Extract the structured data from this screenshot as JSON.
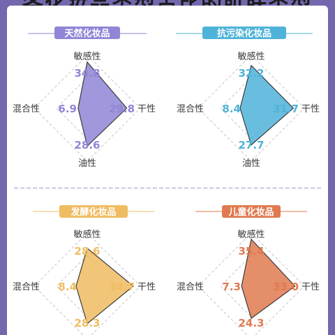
{
  "header": {
    "title": "各化妆品类型占比的肌肤类型"
  },
  "chart_data": [
    {
      "type": "radar",
      "title": "天然化妆品",
      "color": "#8f86d6",
      "axes": [
        "敏感性",
        "干性",
        "油性",
        "混合性"
      ],
      "values": [
        34.8,
        29.8,
        28.6,
        6.9
      ],
      "value_labels": [
        "34.8",
        "29.8",
        "28.6",
        "6.9"
      ],
      "rmax": 40
    },
    {
      "type": "radar",
      "title": "抗污染化妆品",
      "color": "#4fb3d9",
      "axes": [
        "敏感性",
        "干性",
        "油性",
        "混合性"
      ],
      "values": [
        32.2,
        31.7,
        27.7,
        8.4
      ],
      "value_labels": [
        "32.2",
        "31.7",
        "27.7",
        "8.4"
      ],
      "rmax": 40
    },
    {
      "type": "radar",
      "title": "发酵化妆品",
      "color": "#f0bc62",
      "axes": [
        "敏感性",
        "干性",
        "油性",
        "混合性"
      ],
      "values": [
        28.6,
        34.7,
        28.3,
        8.4
      ],
      "value_labels": [
        "28.6",
        "34.7",
        "28.3",
        "8.4"
      ],
      "rmax": 40
    },
    {
      "type": "radar",
      "title": "儿童化妆品",
      "color": "#e07a50",
      "axes": [
        "敏感性",
        "干性",
        "油性",
        "混合性"
      ],
      "values": [
        35.4,
        33.0,
        24.3,
        7.3
      ],
      "value_labels": [
        "35.4",
        "33.0",
        "24.3",
        "7.3"
      ],
      "rmax": 40
    }
  ]
}
